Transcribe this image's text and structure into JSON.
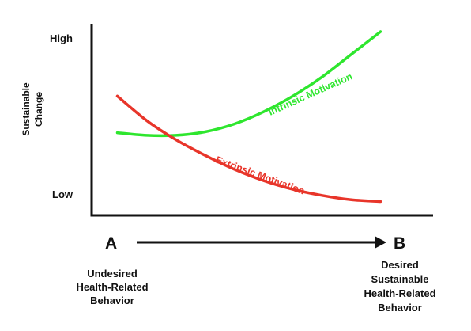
{
  "chart_data": {
    "type": "line",
    "xlabel": "",
    "ylabel": "Sustainable Change",
    "ylabel_lines": [
      "Sustainable",
      "Change"
    ],
    "y_ticks": [
      "High",
      "Low"
    ],
    "ylim": [
      0,
      10
    ],
    "xlim": [
      0,
      10
    ],
    "grid": false,
    "legend": "inline labels on curves",
    "start_point": {
      "letter": "A",
      "description_lines": [
        "Undesired",
        "Health-Related",
        "Behavior"
      ]
    },
    "end_point": {
      "letter": "B",
      "description_lines": [
        "Desired",
        "Sustainable",
        "Health-Related",
        "Behavior"
      ]
    },
    "series": [
      {
        "name": "Intrinsic Motivation",
        "color": "#2ee62e",
        "x": [
          0.5,
          1.5,
          2.5,
          3.5,
          4.5,
          5.5,
          6.5,
          7.5,
          8.5,
          9.5
        ],
        "y": [
          4.2,
          4.05,
          4.05,
          4.25,
          4.7,
          5.4,
          6.3,
          7.4,
          8.7,
          10.0
        ]
      },
      {
        "name": "Extrinsic Motivation",
        "color": "#e8352a",
        "x": [
          0.5,
          1.5,
          2.5,
          3.5,
          4.5,
          5.5,
          6.5,
          7.5,
          8.5,
          9.5
        ],
        "y": [
          6.3,
          4.9,
          3.8,
          2.9,
          2.1,
          1.45,
          0.95,
          0.6,
          0.35,
          0.25
        ]
      }
    ]
  }
}
